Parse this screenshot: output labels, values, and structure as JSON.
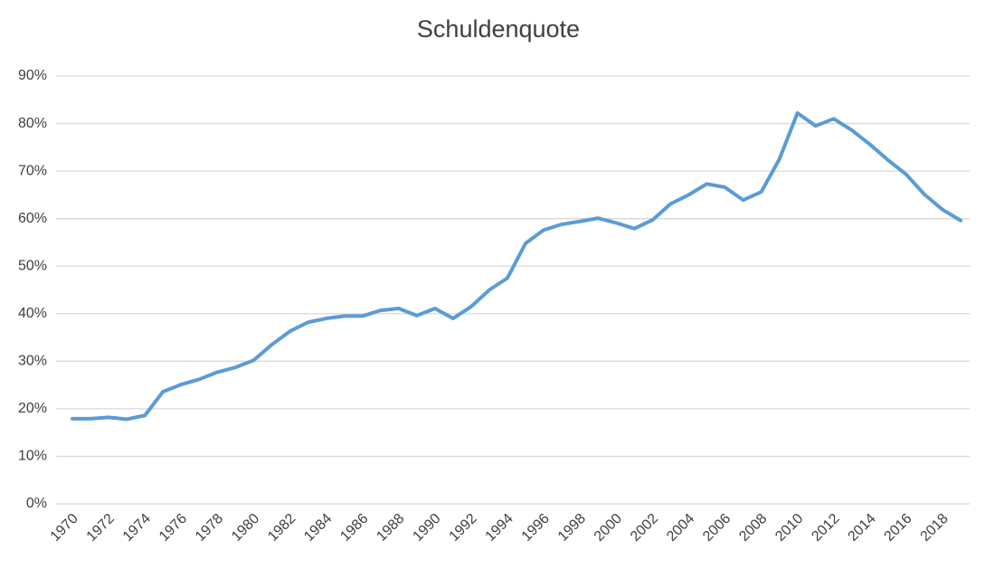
{
  "chart_data": {
    "type": "line",
    "title": "Schuldenquote",
    "categories": [
      "1970",
      null,
      "1972",
      null,
      "1974",
      null,
      "1976",
      null,
      "1978",
      null,
      "1980",
      null,
      "1982",
      null,
      "1984",
      null,
      "1986",
      null,
      "1988",
      null,
      "1990",
      null,
      "1992",
      null,
      "1994",
      null,
      "1996",
      null,
      "1998",
      null,
      "2000",
      null,
      "2002",
      null,
      "2004",
      null,
      "2006",
      null,
      "2008",
      null,
      "2010",
      null,
      "2012",
      null,
      "2014",
      null,
      "2016",
      null,
      "2018",
      null
    ],
    "values": [
      17.9,
      17.9,
      18.2,
      17.8,
      18.6,
      23.6,
      25.1,
      26.2,
      27.7,
      28.7,
      30.2,
      33.5,
      36.3,
      38.2,
      39.0,
      39.5,
      39.5,
      40.7,
      41.1,
      39.6,
      41.1,
      39.0,
      41.5,
      45.0,
      47.5,
      54.8,
      57.6,
      58.8,
      59.4,
      60.1,
      59.1,
      57.9,
      59.7,
      63.1,
      65.0,
      67.3,
      66.6,
      63.9,
      65.6,
      72.5,
      82.2,
      79.5,
      81.0,
      78.6,
      75.6,
      72.3,
      69.3,
      65.1,
      61.9,
      59.6
    ],
    "color": "#5b9bd5",
    "ylim": [
      0,
      90
    ],
    "yticks": [
      {
        "value": 0,
        "label": "0%"
      },
      {
        "value": 10,
        "label": "10%"
      },
      {
        "value": 20,
        "label": "20%"
      },
      {
        "value": 30,
        "label": "30%"
      },
      {
        "value": 40,
        "label": "40%"
      },
      {
        "value": 50,
        "label": "50%"
      },
      {
        "value": 60,
        "label": "60%"
      },
      {
        "value": 70,
        "label": "70%"
      },
      {
        "value": 80,
        "label": "80%"
      },
      {
        "value": 90,
        "label": "90%"
      }
    ],
    "grid": true
  }
}
